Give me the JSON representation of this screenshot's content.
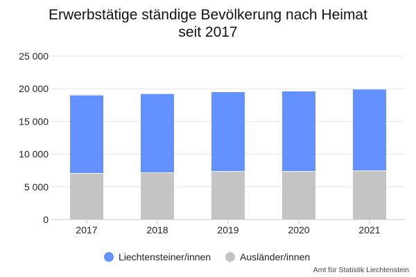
{
  "chart_data": {
    "type": "bar",
    "stacked": true,
    "title": "Erwerbstätige ständige Bevölkerung nach Heimat",
    "subtitle": "seit 2017",
    "categories": [
      "2017",
      "2018",
      "2019",
      "2020",
      "2021"
    ],
    "series": [
      {
        "name": "Ausländer/innen",
        "color": "#c4c4c4",
        "values": [
          7100,
          7200,
          7400,
          7400,
          7500
        ]
      },
      {
        "name": "Liechtensteiner/innen",
        "color": "#6391ff",
        "values": [
          12000,
          12100,
          12200,
          12300,
          12500
        ]
      }
    ],
    "ylim": [
      0,
      25000
    ],
    "yticks": [
      0,
      5000,
      10000,
      15000,
      20000,
      25000
    ],
    "ytick_labels": [
      "0",
      "5 000",
      "10 000",
      "15 000",
      "20 000",
      "25 000"
    ],
    "grid": true,
    "legend": {
      "placement": "bottom",
      "items": [
        {
          "label": "Liechtensteiner/innen",
          "color": "#6391ff"
        },
        {
          "label": "Ausländer/innen",
          "color": "#c4c4c4"
        }
      ]
    },
    "source": "Amt für Statistik Liechtenstein"
  }
}
